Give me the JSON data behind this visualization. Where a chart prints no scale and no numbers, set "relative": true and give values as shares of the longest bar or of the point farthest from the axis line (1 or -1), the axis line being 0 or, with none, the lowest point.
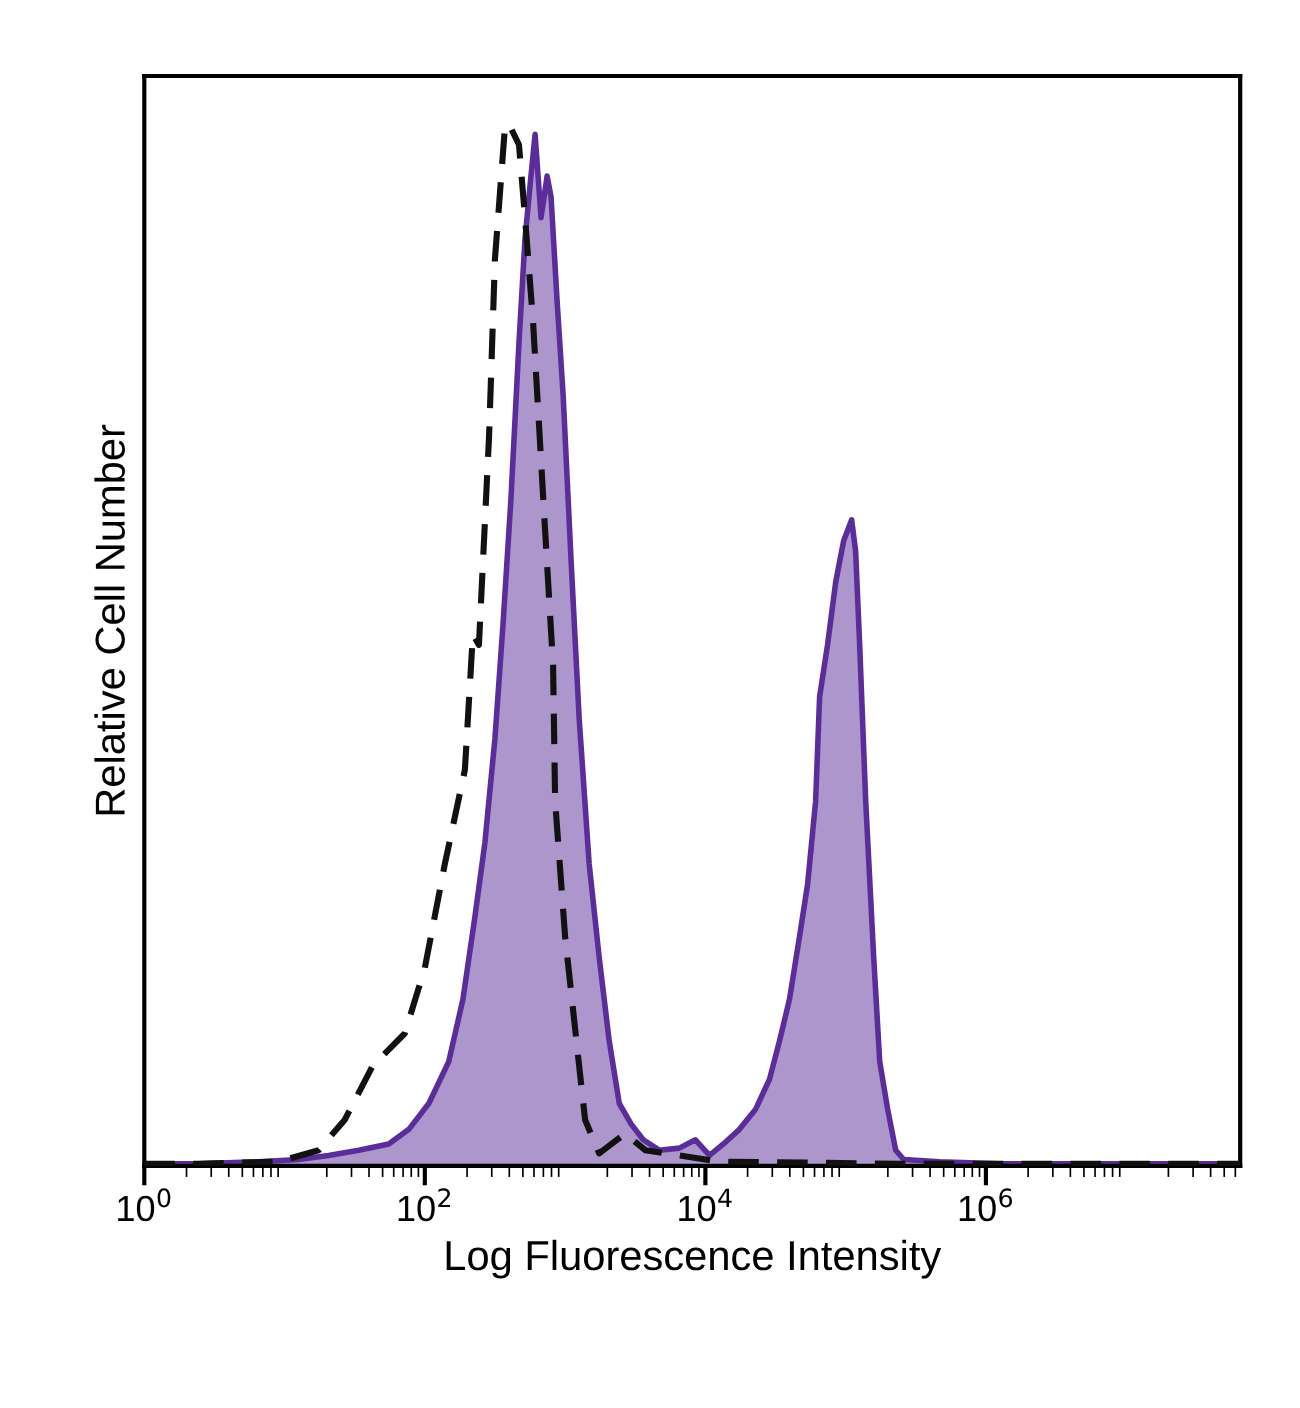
{
  "chart_data": {
    "type": "area",
    "relative": true,
    "xlabel": "Log Fluorescence Intensity",
    "ylabel": "Relative Cell Number",
    "log": "x",
    "grid": false,
    "xlim": [
      1,
      65000000
    ],
    "xticks": [
      {
        "value": 1,
        "label": "10$^{0}$"
      },
      {
        "value": 100,
        "label": "10$^{2}$"
      },
      {
        "value": 10000,
        "label": "10$^{4}$"
      },
      {
        "value": 1000000,
        "label": "10$^{6}$"
      }
    ],
    "series": [
      {
        "color": "#5b2d9a",
        "line_style": "solid",
        "x": [
          1,
          2.43,
          6.52,
          12.6,
          20.6,
          33.8,
          55.3,
          76.9,
          107,
          148,
          187,
          228,
          268,
          316,
          361,
          411,
          469,
          518,
          571,
          611,
          674,
          744,
          794,
          877,
          968,
          1104,
          1259,
          1484,
          1750,
          2062,
          2432,
          2960,
          3606,
          4691,
          6520,
          8490,
          10700,
          13450,
          17500,
          22750,
          28650,
          33800,
          39800,
          46900,
          53550,
          61100,
          65200,
          74300,
          84900,
          96800,
          110400,
          117800,
          125900,
          139000,
          158500,
          175000,
          199500,
          227500,
          259400,
          469000,
          1259000,
          4690000,
          17500000,
          65000000
        ],
        "values": [
          0.002,
          0.002,
          0.004,
          0.006,
          0.01,
          0.015,
          0.021,
          0.035,
          0.06,
          0.1,
          0.16,
          0.24,
          0.31,
          0.41,
          0.52,
          0.64,
          0.79,
          0.89,
          0.95,
          0.99,
          0.91,
          0.95,
          0.93,
          0.83,
          0.74,
          0.58,
          0.43,
          0.29,
          0.2,
          0.12,
          0.06,
          0.04,
          0.025,
          0.015,
          0.017,
          0.025,
          0.01,
          0.021,
          0.035,
          0.054,
          0.083,
          0.12,
          0.16,
          0.22,
          0.27,
          0.35,
          0.45,
          0.5,
          0.56,
          0.6,
          0.62,
          0.59,
          0.5,
          0.35,
          0.2,
          0.1,
          0.054,
          0.015,
          0.006,
          0.004,
          0.002,
          0.002,
          0.002,
          0.002
        ]
      },
      {
        "type": "line",
        "color": "#111111",
        "line_style": "dashed",
        "x": [
          1,
          2.43,
          9.06,
          17.5,
          26.8,
          42.5,
          71.9,
          100,
          139,
          193,
          220,
          243,
          287,
          316,
          373,
          398,
          469,
          518,
          591,
          720,
          821,
          849,
          1000,
          1259,
          1390,
          1750,
          2683,
          3728,
          5180,
          12590,
          243000,
          65000000
        ],
        "values": [
          0.002,
          0.002,
          0.004,
          0.015,
          0.044,
          0.096,
          0.127,
          0.19,
          0.29,
          0.38,
          0.51,
          0.5,
          0.7,
          0.87,
          0.998,
          1,
          0.98,
          0.91,
          0.81,
          0.61,
          0.48,
          0.35,
          0.22,
          0.096,
          0.044,
          0.012,
          0.031,
          0.015,
          0.012,
          0.004,
          0.002,
          0.002
        ]
      }
    ]
  }
}
